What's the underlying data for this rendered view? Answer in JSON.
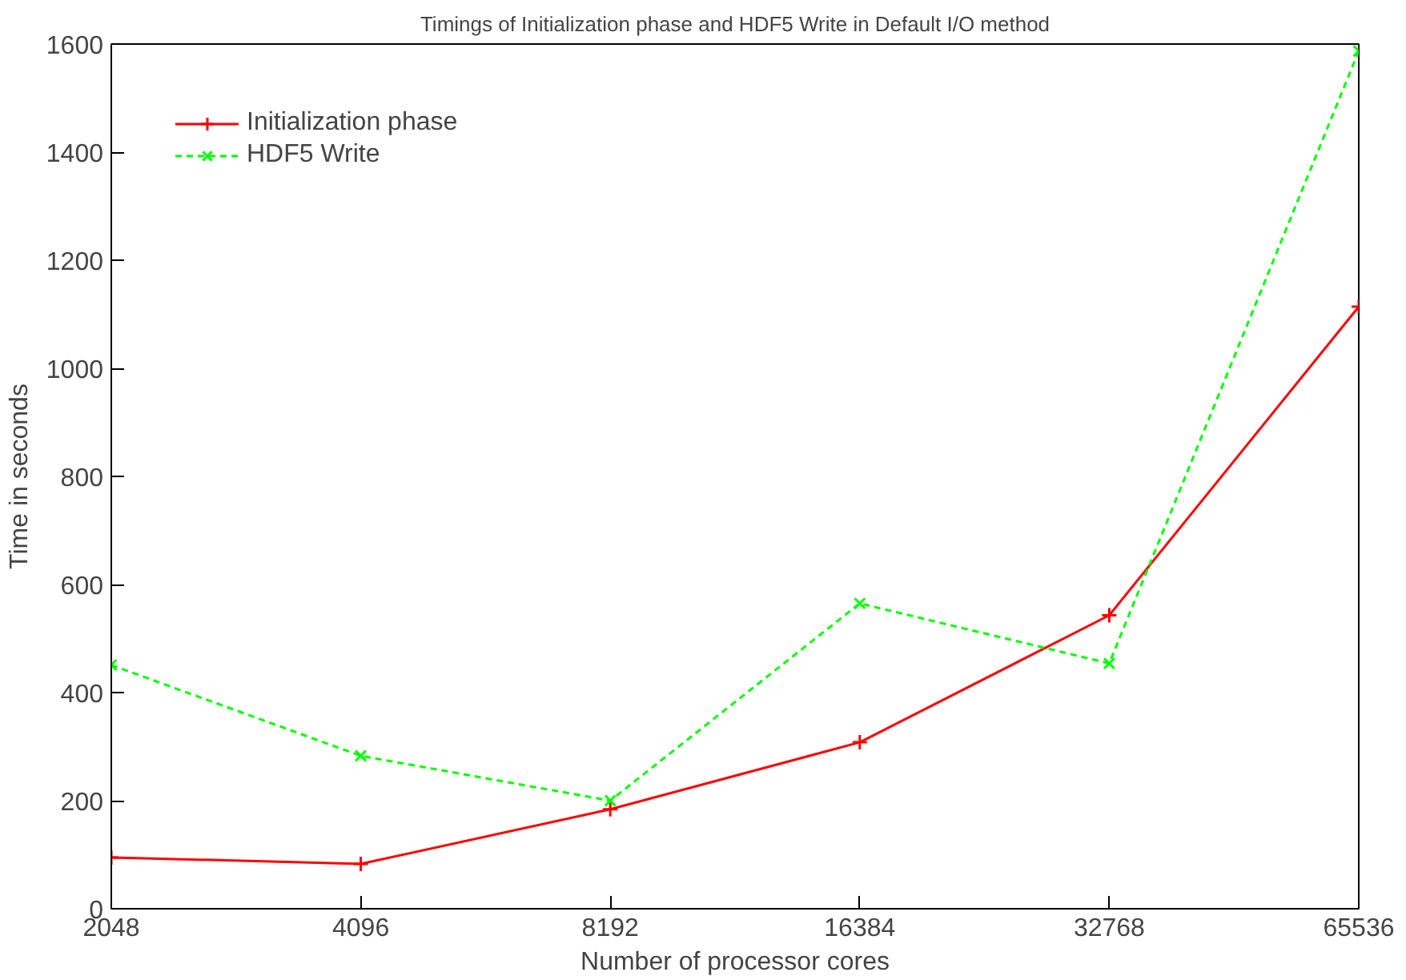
{
  "chart_data": {
    "type": "line",
    "title": "Timings of Initialization phase and HDF5 Write in Default I/O method",
    "xlabel": "Number of processor cores",
    "ylabel": "Time in seconds",
    "x": [
      2048,
      4096,
      8192,
      16384,
      32768,
      65536
    ],
    "series": [
      {
        "name": "Initialization phase",
        "color": "#ff0000",
        "values": [
          95,
          83,
          184,
          308,
          543,
          1114
        ],
        "marker": "cross",
        "line_style": "solid"
      },
      {
        "name": "HDF5 Write",
        "color": "#00ff00",
        "values": [
          451,
          283,
          200,
          565,
          454,
          1587
        ],
        "marker": "x",
        "line_style": "dashed"
      }
    ],
    "log": "x",
    "xlim": [
      2048,
      65536
    ],
    "xticks": [
      2048,
      4096,
      8192,
      16384,
      32768,
      65536
    ],
    "ylim": [
      0,
      1600
    ],
    "yticks": [
      0,
      200,
      400,
      600,
      800,
      1000,
      1200,
      1400,
      1600
    ],
    "grid": false,
    "legend": "top left"
  }
}
